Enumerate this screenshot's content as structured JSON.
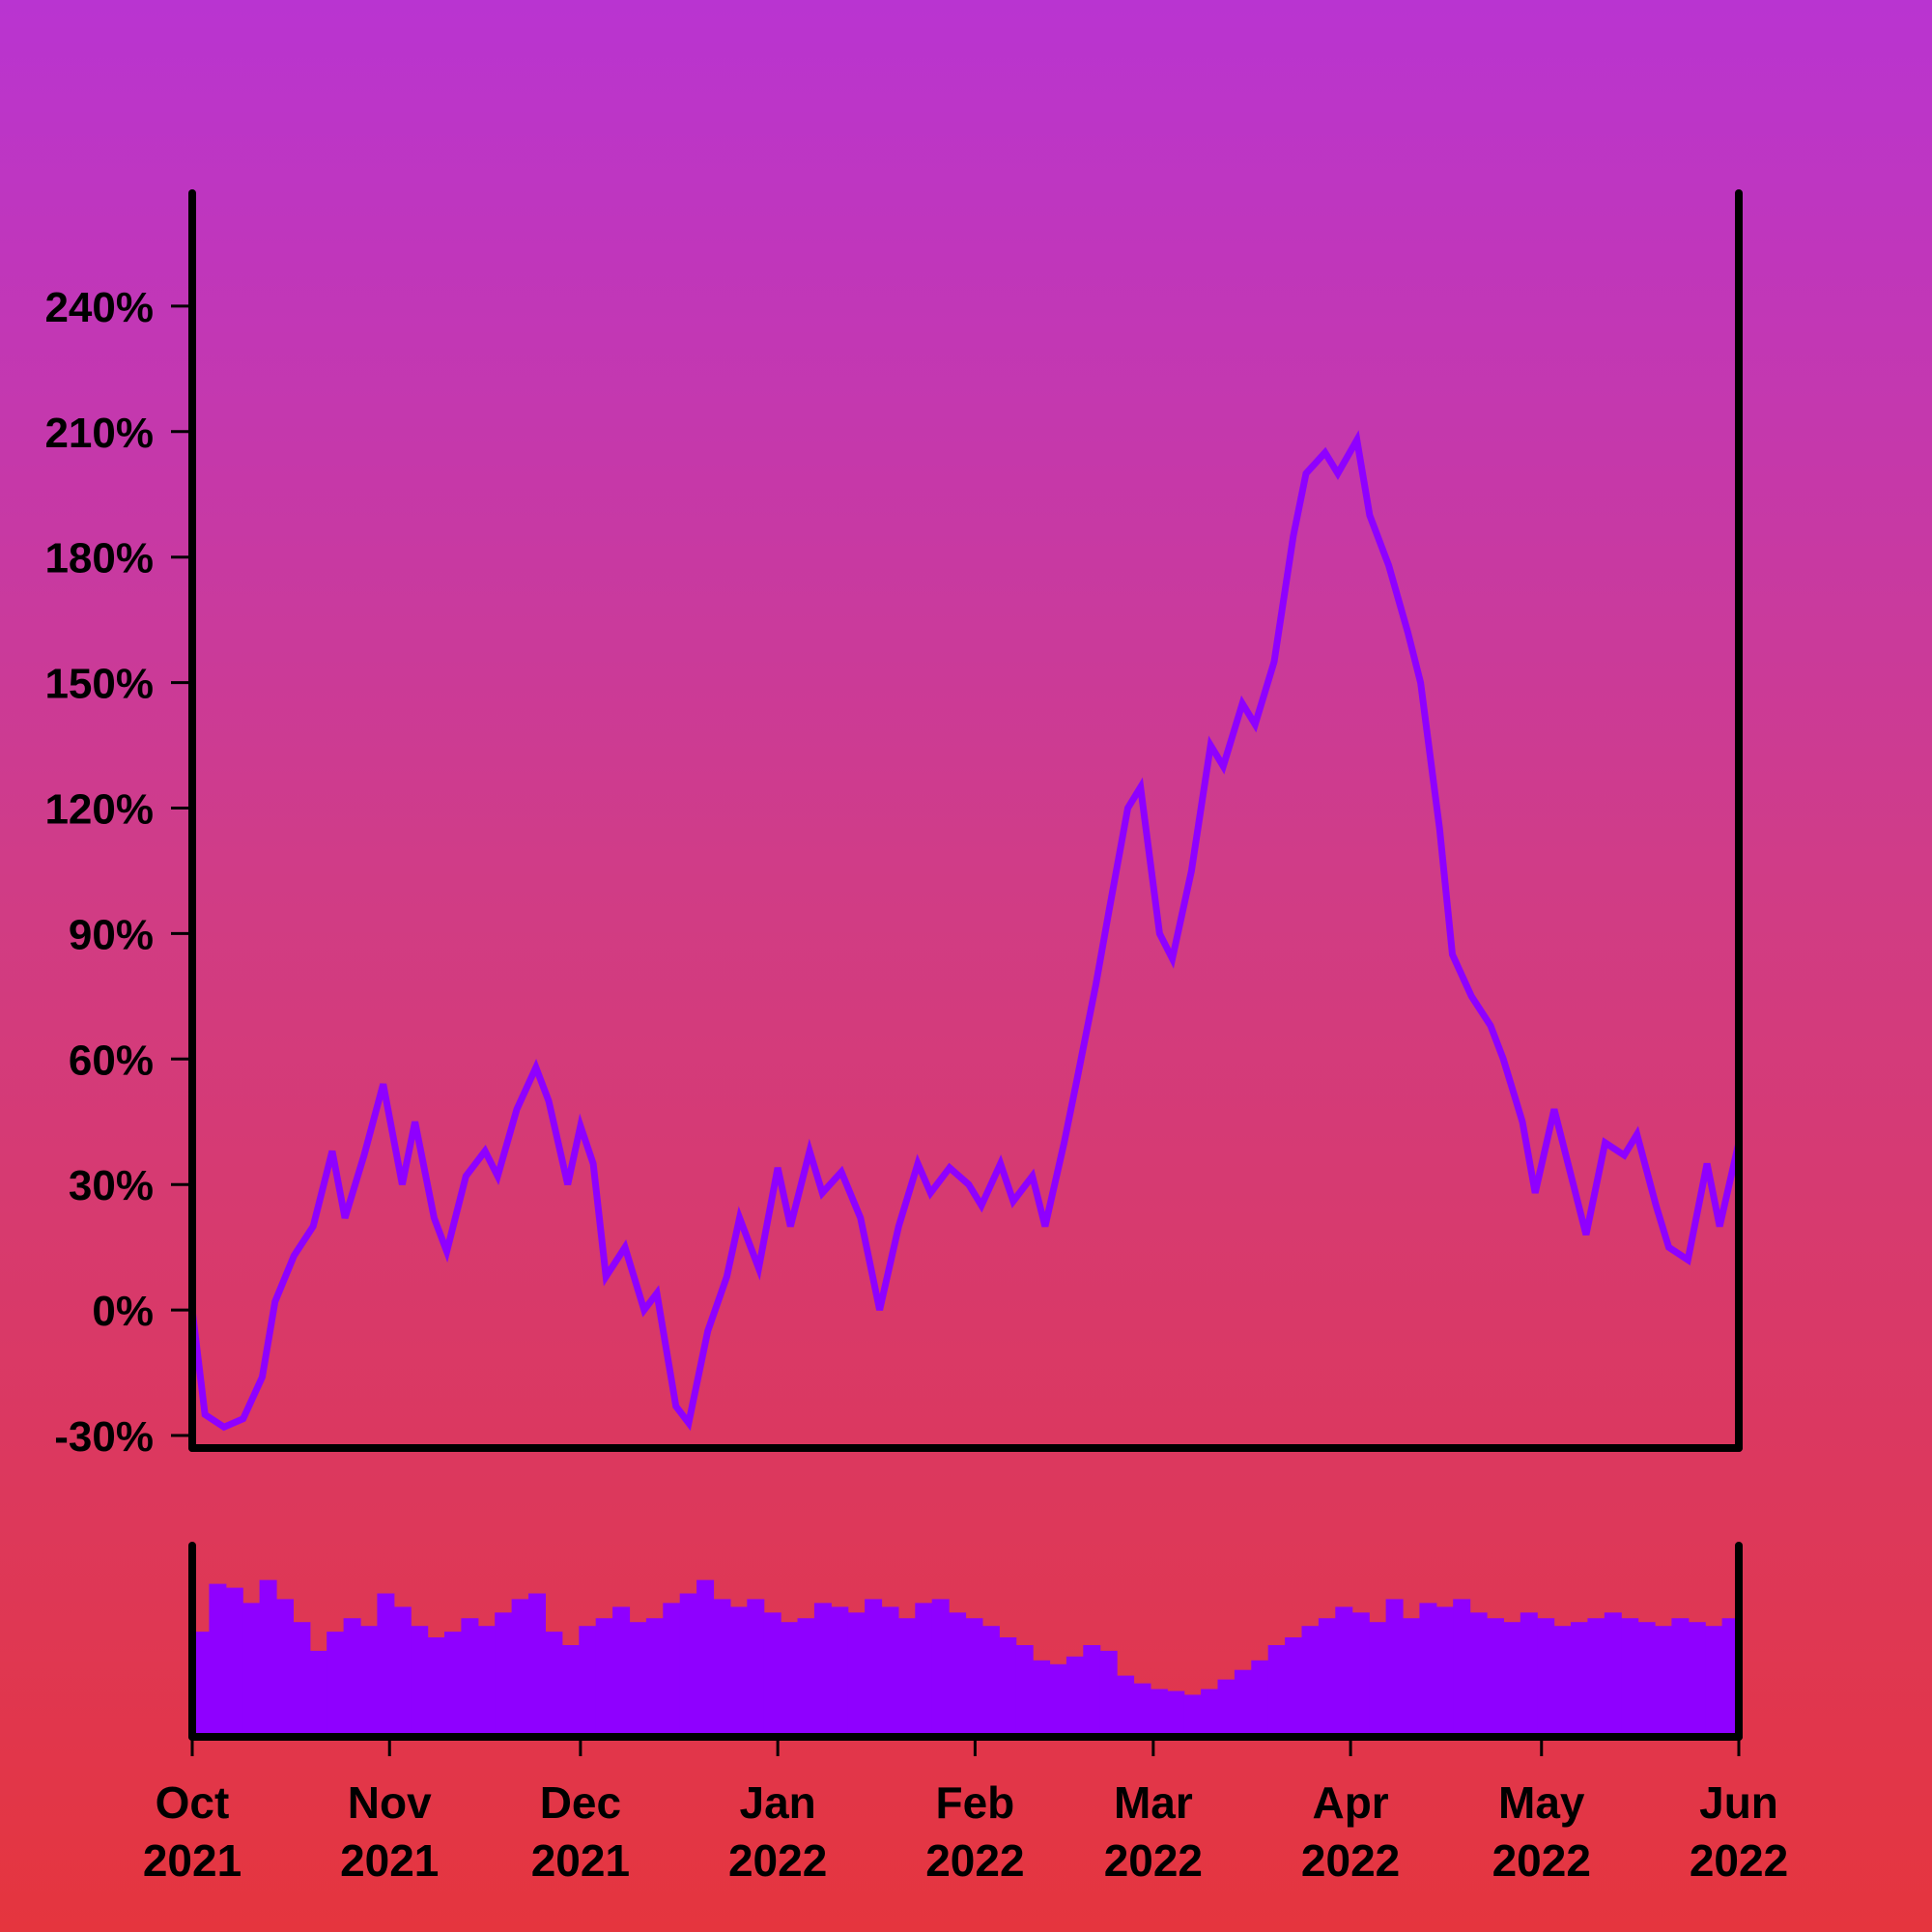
{
  "chart_data": {
    "type": "line",
    "title": "",
    "xlabel": "",
    "ylabel": "",
    "x_start": "2021-10-01",
    "x_end": "2022-06-01",
    "x_ticks": [
      {
        "date": "2021-10-01",
        "month": "Oct",
        "year": "2021"
      },
      {
        "date": "2021-11-01",
        "month": "Nov",
        "year": "2021"
      },
      {
        "date": "2021-12-01",
        "month": "Dec",
        "year": "2021"
      },
      {
        "date": "2022-01-01",
        "month": "Jan",
        "year": "2022"
      },
      {
        "date": "2022-02-01",
        "month": "Feb",
        "year": "2022"
      },
      {
        "date": "2022-03-01",
        "month": "Mar",
        "year": "2022"
      },
      {
        "date": "2022-04-01",
        "month": "Apr",
        "year": "2022"
      },
      {
        "date": "2022-05-01",
        "month": "May",
        "year": "2022"
      },
      {
        "date": "2022-06-01",
        "month": "Jun",
        "year": "2022"
      }
    ],
    "y_ticks": [
      {
        "value": -30,
        "label": "-30%"
      },
      {
        "value": 0,
        "label": "0%"
      },
      {
        "value": 30,
        "label": "30%"
      },
      {
        "value": 60,
        "label": "60%"
      },
      {
        "value": 90,
        "label": "90%"
      },
      {
        "value": 120,
        "label": "120%"
      },
      {
        "value": 150,
        "label": "150%"
      },
      {
        "value": 180,
        "label": "180%"
      },
      {
        "value": 210,
        "label": "210%"
      },
      {
        "value": 240,
        "label": "240%"
      }
    ],
    "ylim": [
      -33,
      267
    ],
    "grid": false,
    "legend": "none",
    "line_color": "#8f00ff",
    "volume_color": "#8f00ff",
    "series": [
      {
        "values": [
          [
            "2021-10-01",
            0
          ],
          [
            "2021-10-03",
            -25
          ],
          [
            "2021-10-06",
            -28
          ],
          [
            "2021-10-09",
            -26
          ],
          [
            "2021-10-12",
            -16
          ],
          [
            "2021-10-14",
            2
          ],
          [
            "2021-10-17",
            13
          ],
          [
            "2021-10-20",
            20
          ],
          [
            "2021-10-23",
            38
          ],
          [
            "2021-10-25",
            22
          ],
          [
            "2021-10-28",
            37
          ],
          [
            "2021-10-31",
            54
          ],
          [
            "2021-11-03",
            30
          ],
          [
            "2021-11-05",
            45
          ],
          [
            "2021-11-08",
            22
          ],
          [
            "2021-11-10",
            14
          ],
          [
            "2021-11-13",
            32
          ],
          [
            "2021-11-16",
            38
          ],
          [
            "2021-11-18",
            32
          ],
          [
            "2021-11-21",
            48
          ],
          [
            "2021-11-24",
            58
          ],
          [
            "2021-11-26",
            50
          ],
          [
            "2021-11-29",
            30
          ],
          [
            "2021-12-01",
            44
          ],
          [
            "2021-12-03",
            35
          ],
          [
            "2021-12-05",
            8
          ],
          [
            "2021-12-08",
            15
          ],
          [
            "2021-12-11",
            0
          ],
          [
            "2021-12-13",
            4
          ],
          [
            "2021-12-16",
            -23
          ],
          [
            "2021-12-18",
            -27
          ],
          [
            "2021-12-21",
            -5
          ],
          [
            "2021-12-24",
            8
          ],
          [
            "2021-12-26",
            22
          ],
          [
            "2021-12-29",
            10
          ],
          [
            "2022-01-01",
            34
          ],
          [
            "2022-01-03",
            20
          ],
          [
            "2022-01-06",
            38
          ],
          [
            "2022-01-08",
            28
          ],
          [
            "2022-01-11",
            33
          ],
          [
            "2022-01-14",
            22
          ],
          [
            "2022-01-17",
            0
          ],
          [
            "2022-01-20",
            20
          ],
          [
            "2022-01-23",
            35
          ],
          [
            "2022-01-25",
            28
          ],
          [
            "2022-01-28",
            34
          ],
          [
            "2022-01-31",
            30
          ],
          [
            "2022-02-02",
            25
          ],
          [
            "2022-02-05",
            35
          ],
          [
            "2022-02-07",
            26
          ],
          [
            "2022-02-10",
            32
          ],
          [
            "2022-02-12",
            20
          ],
          [
            "2022-02-15",
            40
          ],
          [
            "2022-02-17",
            55
          ],
          [
            "2022-02-20",
            78
          ],
          [
            "2022-02-22",
            95
          ],
          [
            "2022-02-25",
            120
          ],
          [
            "2022-02-27",
            125
          ],
          [
            "2022-03-02",
            90
          ],
          [
            "2022-03-04",
            84
          ],
          [
            "2022-03-07",
            105
          ],
          [
            "2022-03-10",
            135
          ],
          [
            "2022-03-12",
            130
          ],
          [
            "2022-03-15",
            145
          ],
          [
            "2022-03-17",
            140
          ],
          [
            "2022-03-20",
            155
          ],
          [
            "2022-03-23",
            185
          ],
          [
            "2022-03-25",
            200
          ],
          [
            "2022-03-28",
            205
          ],
          [
            "2022-03-30",
            200
          ],
          [
            "2022-04-02",
            208
          ],
          [
            "2022-04-04",
            190
          ],
          [
            "2022-04-07",
            178
          ],
          [
            "2022-04-10",
            162
          ],
          [
            "2022-04-12",
            150
          ],
          [
            "2022-04-15",
            115
          ],
          [
            "2022-04-17",
            85
          ],
          [
            "2022-04-20",
            75
          ],
          [
            "2022-04-23",
            68
          ],
          [
            "2022-04-25",
            60
          ],
          [
            "2022-04-28",
            45
          ],
          [
            "2022-04-30",
            28
          ],
          [
            "2022-05-03",
            48
          ],
          [
            "2022-05-06",
            30
          ],
          [
            "2022-05-08",
            18
          ],
          [
            "2022-05-11",
            40
          ],
          [
            "2022-05-14",
            37
          ],
          [
            "2022-05-16",
            42
          ],
          [
            "2022-05-19",
            25
          ],
          [
            "2022-05-21",
            15
          ],
          [
            "2022-05-24",
            12
          ],
          [
            "2022-05-27",
            35
          ],
          [
            "2022-05-29",
            20
          ],
          [
            "2022-06-01",
            40
          ]
        ]
      }
    ],
    "volume": {
      "values": [
        0.55,
        0.8,
        0.78,
        0.7,
        0.82,
        0.72,
        0.6,
        0.45,
        0.55,
        0.62,
        0.58,
        0.75,
        0.68,
        0.58,
        0.52,
        0.55,
        0.62,
        0.58,
        0.65,
        0.72,
        0.75,
        0.55,
        0.48,
        0.58,
        0.62,
        0.68,
        0.6,
        0.62,
        0.7,
        0.75,
        0.82,
        0.72,
        0.68,
        0.72,
        0.65,
        0.6,
        0.62,
        0.7,
        0.68,
        0.65,
        0.72,
        0.68,
        0.62,
        0.7,
        0.72,
        0.65,
        0.62,
        0.58,
        0.52,
        0.48,
        0.4,
        0.38,
        0.42,
        0.48,
        0.45,
        0.32,
        0.28,
        0.25,
        0.24,
        0.22,
        0.25,
        0.3,
        0.35,
        0.4,
        0.48,
        0.52,
        0.58,
        0.62,
        0.68,
        0.65,
        0.6,
        0.72,
        0.62,
        0.7,
        0.68,
        0.72,
        0.65,
        0.62,
        0.6,
        0.65,
        0.62,
        0.58,
        0.6,
        0.62,
        0.65,
        0.62,
        0.6,
        0.58,
        0.62,
        0.6,
        0.58,
        0.62
      ]
    }
  }
}
